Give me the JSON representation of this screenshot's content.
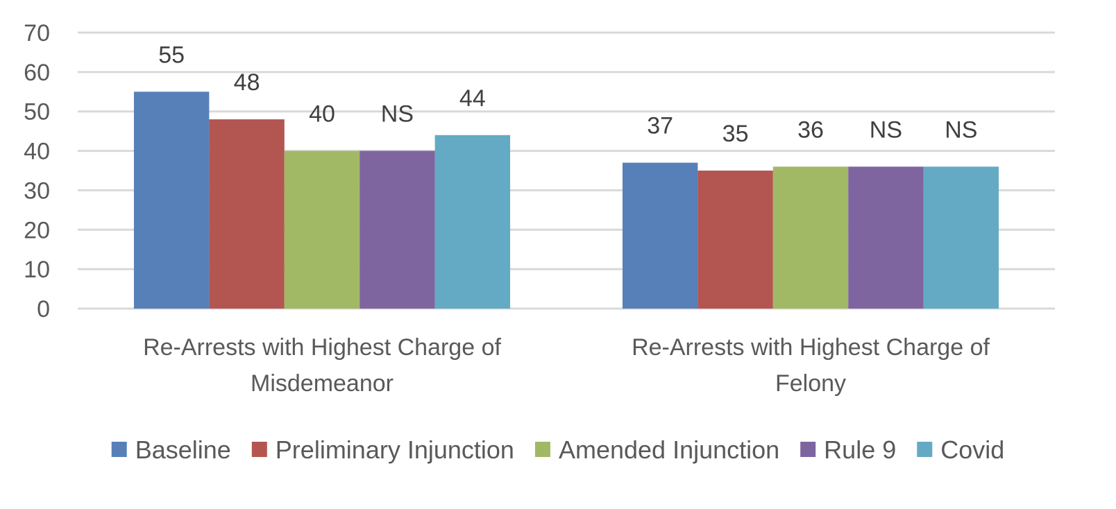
{
  "chart_data": {
    "type": "bar",
    "categories": [
      [
        "Re-Arrests with Highest Charge of",
        "Misdemeanor"
      ],
      [
        "Re-Arrests with Highest Charge of",
        "Felony"
      ]
    ],
    "series": [
      {
        "name": "Baseline",
        "color": "#5880b8",
        "values": [
          55,
          37
        ],
        "labels": [
          "55",
          "37"
        ]
      },
      {
        "name": "Preliminary Injunction",
        "color": "#b35651",
        "values": [
          48,
          35
        ],
        "labels": [
          "48",
          "35"
        ]
      },
      {
        "name": "Amended Injunction",
        "color": "#a1b965",
        "values": [
          40,
          36
        ],
        "labels": [
          "40",
          "36"
        ]
      },
      {
        "name": "Rule 9",
        "color": "#7e65a0",
        "values": [
          40,
          36
        ],
        "labels": [
          "NS",
          "NS"
        ]
      },
      {
        "name": "Covid",
        "color": "#64aac4",
        "values": [
          44,
          36
        ],
        "labels": [
          "44",
          "NS"
        ]
      }
    ],
    "ylim": [
      0,
      70
    ],
    "yticks": [
      0,
      10,
      20,
      30,
      40,
      50,
      60,
      70
    ],
    "grid": true,
    "legend_position": "bottom"
  }
}
